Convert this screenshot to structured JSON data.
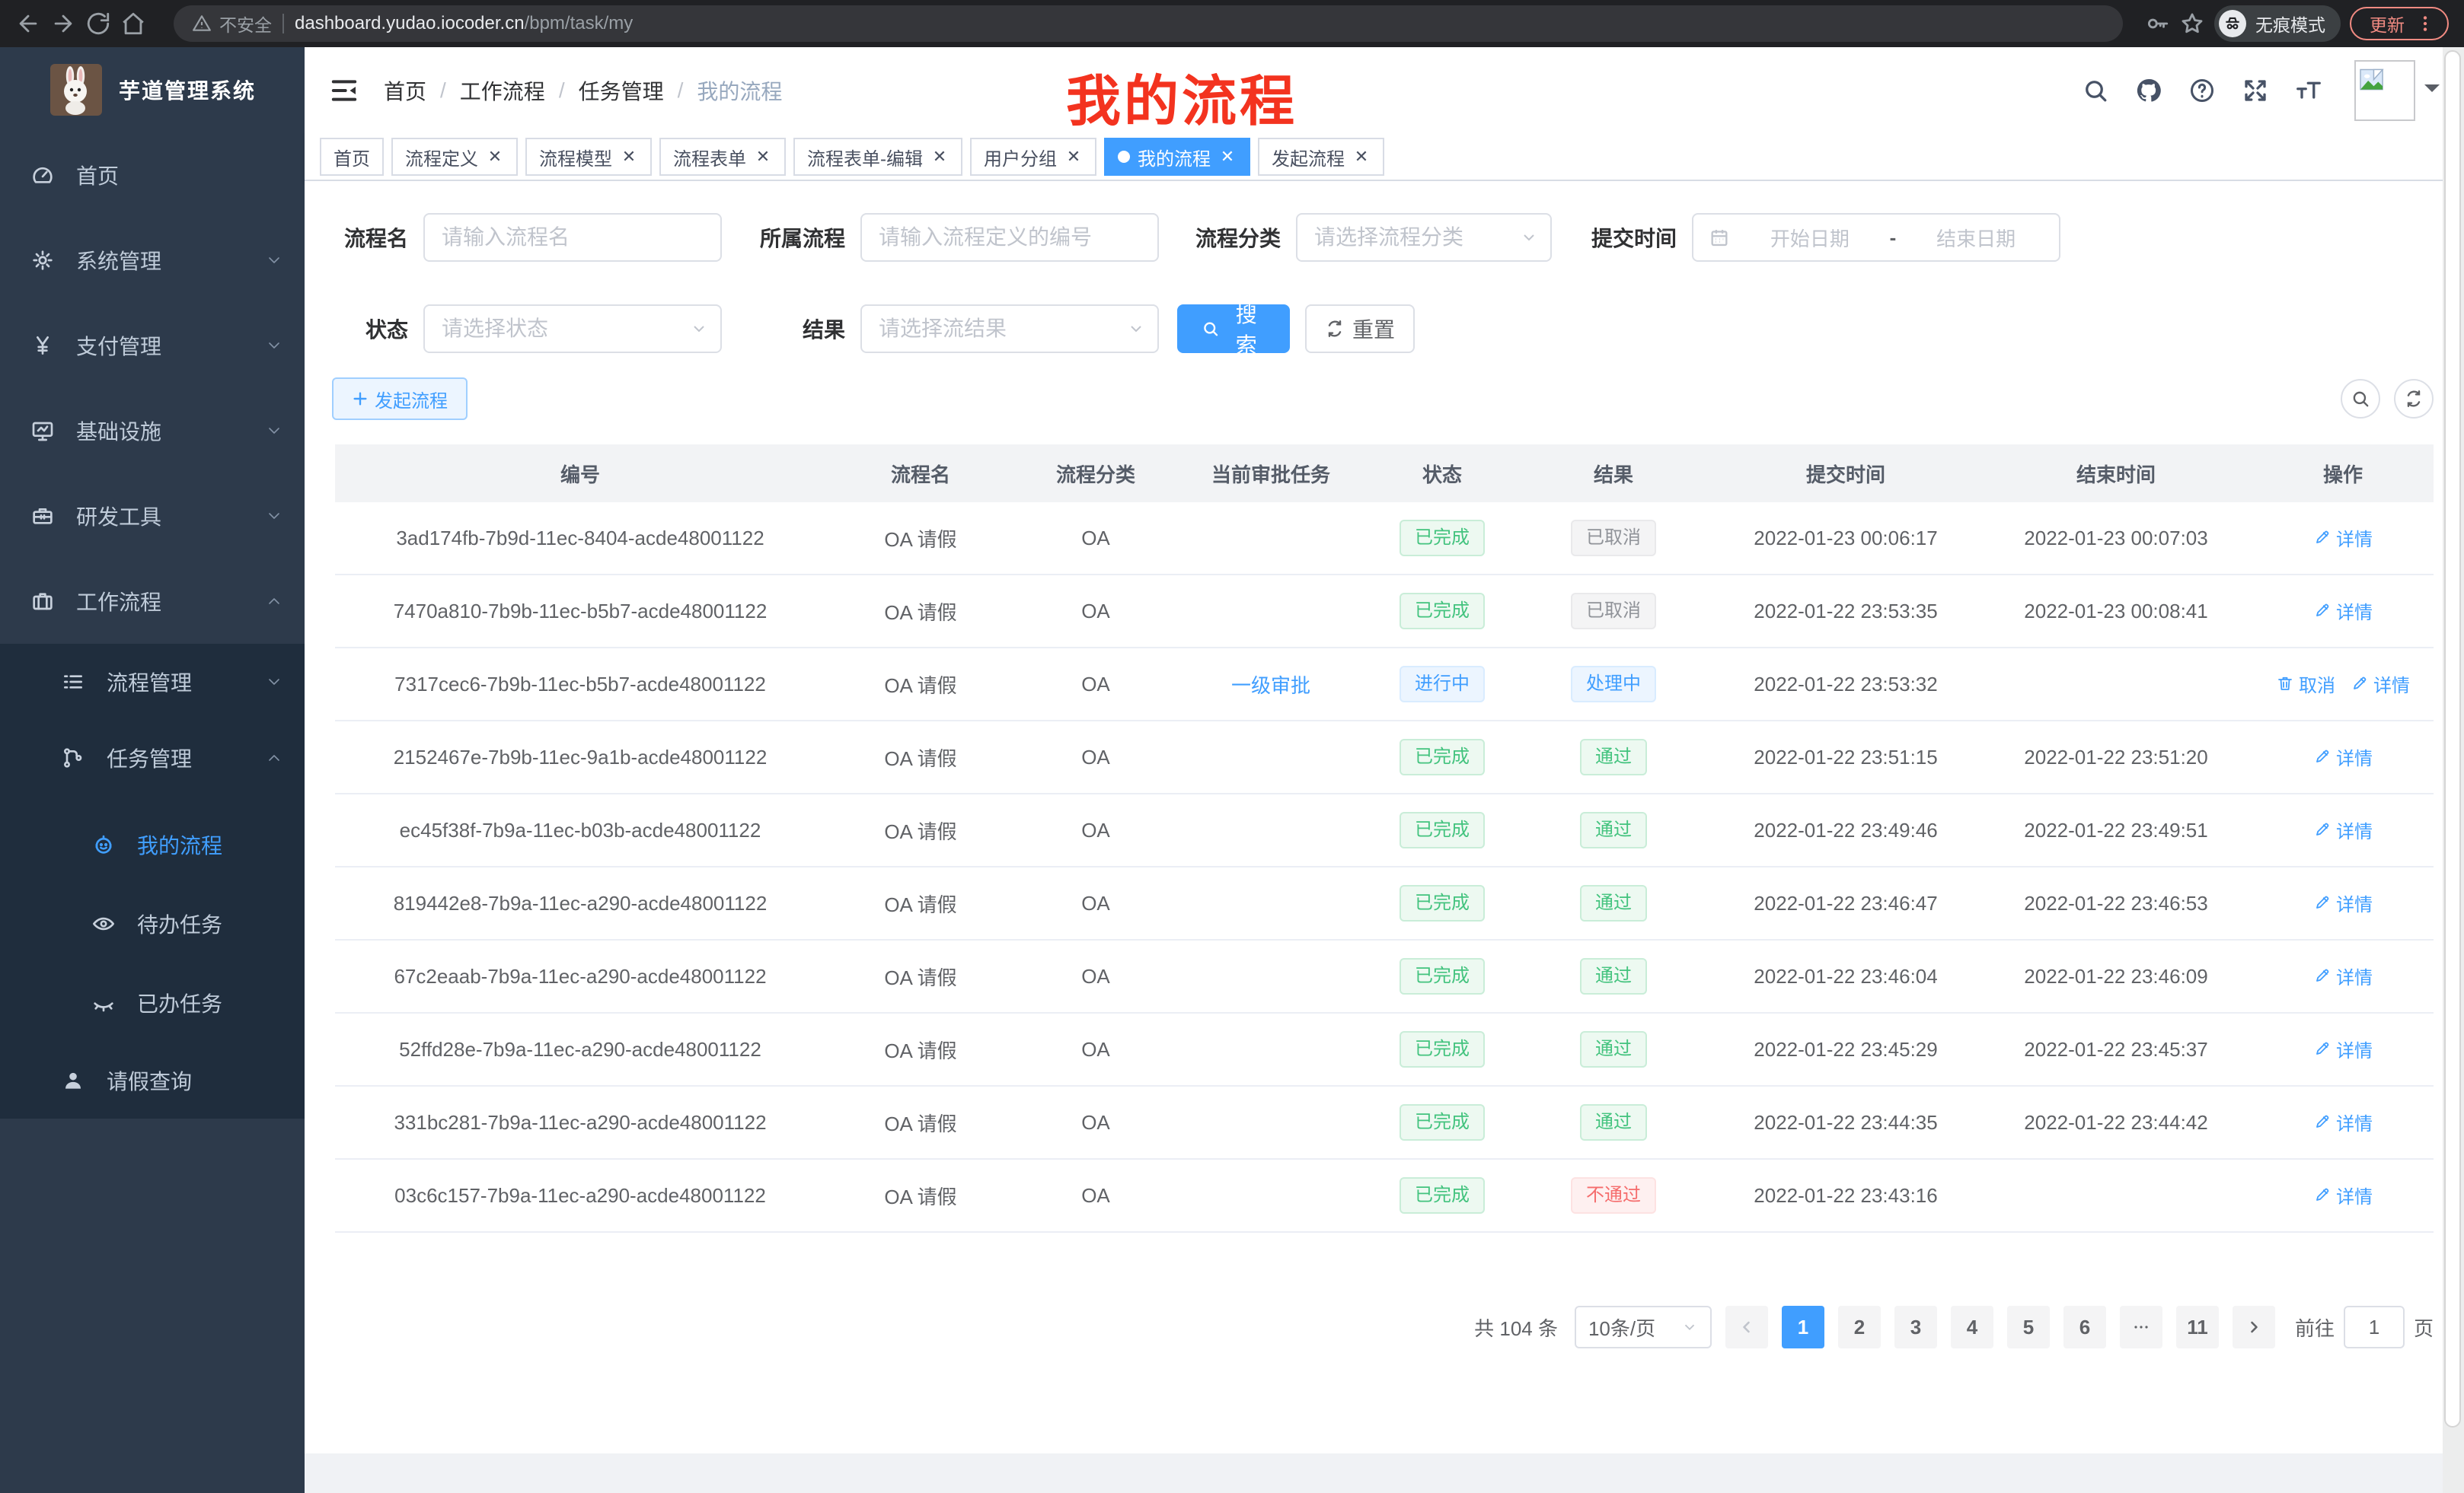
{
  "browser": {
    "security_label": "不安全",
    "url_host": "dashboard.yudao.iocoder.cn",
    "url_path": "/bpm/task/my",
    "incognito_label": "无痕模式",
    "update_label": "更新"
  },
  "sidebar": {
    "app_title": "芋道管理系统",
    "menu": [
      {
        "name": "home",
        "label": "首页",
        "icon": "dashboard-icon",
        "level": 1,
        "expand": null
      },
      {
        "name": "system",
        "label": "系统管理",
        "icon": "gear-icon",
        "level": 1,
        "expand": "down"
      },
      {
        "name": "payment",
        "label": "支付管理",
        "icon": "yen-icon",
        "level": 1,
        "expand": "down"
      },
      {
        "name": "infra",
        "label": "基础设施",
        "icon": "monitor-icon",
        "level": 1,
        "expand": "down"
      },
      {
        "name": "devtools",
        "label": "研发工具",
        "icon": "toolbox-icon",
        "level": 1,
        "expand": "down"
      },
      {
        "name": "workflow",
        "label": "工作流程",
        "icon": "briefcase-icon",
        "level": 1,
        "expand": "up"
      }
    ],
    "submenu": [
      {
        "name": "process-mgmt",
        "label": "流程管理",
        "icon": "list-icon",
        "level": 2,
        "expand": "down",
        "active": false
      },
      {
        "name": "task-mgmt",
        "label": "任务管理",
        "icon": "flow-icon",
        "level": 2,
        "expand": "up",
        "active": false
      },
      {
        "name": "my-process",
        "label": "我的流程",
        "icon": "robot-icon",
        "level": 3,
        "expand": null,
        "active": true
      },
      {
        "name": "todo-tasks",
        "label": "待办任务",
        "icon": "eye-open-icon",
        "level": 3,
        "expand": null,
        "active": false
      },
      {
        "name": "done-tasks",
        "label": "已办任务",
        "icon": "eye-closed-icon",
        "level": 3,
        "expand": null,
        "active": false
      },
      {
        "name": "leave-query",
        "label": "请假查询",
        "icon": "user-icon",
        "level": 2,
        "expand": null,
        "active": false
      }
    ]
  },
  "header": {
    "breadcrumb": [
      "首页",
      "工作流程",
      "任务管理",
      "我的流程"
    ],
    "annotation": {
      "text": "我的流程",
      "color": "#f3331f"
    }
  },
  "tabs": [
    {
      "label": "首页",
      "closable": false,
      "active": false
    },
    {
      "label": "流程定义",
      "closable": true,
      "active": false
    },
    {
      "label": "流程模型",
      "closable": true,
      "active": false
    },
    {
      "label": "流程表单",
      "closable": true,
      "active": false
    },
    {
      "label": "流程表单-编辑",
      "closable": true,
      "active": false
    },
    {
      "label": "用户分组",
      "closable": true,
      "active": false
    },
    {
      "label": "我的流程",
      "closable": true,
      "active": true
    },
    {
      "label": "发起流程",
      "closable": true,
      "active": false
    }
  ],
  "filters": {
    "name_label": "流程名",
    "name_placeholder": "请输入流程名",
    "definition_label": "所属流程",
    "definition_placeholder": "请输入流程定义的编号",
    "category_label": "流程分类",
    "category_placeholder": "请选择流程分类",
    "time_label": "提交时间",
    "time_start_placeholder": "开始日期",
    "time_separator": "-",
    "time_end_placeholder": "结束日期",
    "status_label": "状态",
    "status_placeholder": "请选择状态",
    "result_label": "结果",
    "result_placeholder": "请选择流结果",
    "search_label": "搜索",
    "reset_label": "重置"
  },
  "toolbar": {
    "create_label": "发起流程"
  },
  "table": {
    "columns": [
      "编号",
      "流程名",
      "流程分类",
      "当前审批任务",
      "状态",
      "结果",
      "提交时间",
      "结束时间",
      "操作"
    ],
    "rows": [
      {
        "id": "3ad174fb-7b9d-11ec-8404-acde48001122",
        "name": "OA 请假",
        "category": "OA",
        "task": "",
        "status": {
          "label": "已完成",
          "type": "success"
        },
        "result": {
          "label": "已取消",
          "type": "info"
        },
        "submit_time": "2022-01-23 00:06:17",
        "end_time": "2022-01-23 00:07:03",
        "actions": [
          {
            "label": "详情",
            "icon": "edit-icon",
            "name": "detail-link"
          }
        ]
      },
      {
        "id": "7470a810-7b9b-11ec-b5b7-acde48001122",
        "name": "OA 请假",
        "category": "OA",
        "task": "",
        "status": {
          "label": "已完成",
          "type": "success"
        },
        "result": {
          "label": "已取消",
          "type": "info"
        },
        "submit_time": "2022-01-22 23:53:35",
        "end_time": "2022-01-23 00:08:41",
        "actions": [
          {
            "label": "详情",
            "icon": "edit-icon",
            "name": "detail-link"
          }
        ]
      },
      {
        "id": "7317cec6-7b9b-11ec-b5b7-acde48001122",
        "name": "OA 请假",
        "category": "OA",
        "task": "一级审批",
        "status": {
          "label": "进行中",
          "type": "primary"
        },
        "result": {
          "label": "处理中",
          "type": "primary"
        },
        "submit_time": "2022-01-22 23:53:32",
        "end_time": "",
        "actions": [
          {
            "label": "取消",
            "icon": "trash-icon",
            "name": "cancel-link"
          },
          {
            "label": "详情",
            "icon": "edit-icon",
            "name": "detail-link"
          }
        ]
      },
      {
        "id": "2152467e-7b9b-11ec-9a1b-acde48001122",
        "name": "OA 请假",
        "category": "OA",
        "task": "",
        "status": {
          "label": "已完成",
          "type": "success"
        },
        "result": {
          "label": "通过",
          "type": "success"
        },
        "submit_time": "2022-01-22 23:51:15",
        "end_time": "2022-01-22 23:51:20",
        "actions": [
          {
            "label": "详情",
            "icon": "edit-icon",
            "name": "detail-link"
          }
        ]
      },
      {
        "id": "ec45f38f-7b9a-11ec-b03b-acde48001122",
        "name": "OA 请假",
        "category": "OA",
        "task": "",
        "status": {
          "label": "已完成",
          "type": "success"
        },
        "result": {
          "label": "通过",
          "type": "success"
        },
        "submit_time": "2022-01-22 23:49:46",
        "end_time": "2022-01-22 23:49:51",
        "actions": [
          {
            "label": "详情",
            "icon": "edit-icon",
            "name": "detail-link"
          }
        ]
      },
      {
        "id": "819442e8-7b9a-11ec-a290-acde48001122",
        "name": "OA 请假",
        "category": "OA",
        "task": "",
        "status": {
          "label": "已完成",
          "type": "success"
        },
        "result": {
          "label": "通过",
          "type": "success"
        },
        "submit_time": "2022-01-22 23:46:47",
        "end_time": "2022-01-22 23:46:53",
        "actions": [
          {
            "label": "详情",
            "icon": "edit-icon",
            "name": "detail-link"
          }
        ]
      },
      {
        "id": "67c2eaab-7b9a-11ec-a290-acde48001122",
        "name": "OA 请假",
        "category": "OA",
        "task": "",
        "status": {
          "label": "已完成",
          "type": "success"
        },
        "result": {
          "label": "通过",
          "type": "success"
        },
        "submit_time": "2022-01-22 23:46:04",
        "end_time": "2022-01-22 23:46:09",
        "actions": [
          {
            "label": "详情",
            "icon": "edit-icon",
            "name": "detail-link"
          }
        ]
      },
      {
        "id": "52ffd28e-7b9a-11ec-a290-acde48001122",
        "name": "OA 请假",
        "category": "OA",
        "task": "",
        "status": {
          "label": "已完成",
          "type": "success"
        },
        "result": {
          "label": "通过",
          "type": "success"
        },
        "submit_time": "2022-01-22 23:45:29",
        "end_time": "2022-01-22 23:45:37",
        "actions": [
          {
            "label": "详情",
            "icon": "edit-icon",
            "name": "detail-link"
          }
        ]
      },
      {
        "id": "331bc281-7b9a-11ec-a290-acde48001122",
        "name": "OA 请假",
        "category": "OA",
        "task": "",
        "status": {
          "label": "已完成",
          "type": "success"
        },
        "result": {
          "label": "通过",
          "type": "success"
        },
        "submit_time": "2022-01-22 23:44:35",
        "end_time": "2022-01-22 23:44:42",
        "actions": [
          {
            "label": "详情",
            "icon": "edit-icon",
            "name": "detail-link"
          }
        ]
      },
      {
        "id": "03c6c157-7b9a-11ec-a290-acde48001122",
        "name": "OA 请假",
        "category": "OA",
        "task": "",
        "status": {
          "label": "已完成",
          "type": "success"
        },
        "result": {
          "label": "不通过",
          "type": "danger"
        },
        "submit_time": "2022-01-22 23:43:16",
        "end_time": "",
        "actions": [
          {
            "label": "详情",
            "icon": "edit-icon",
            "name": "detail-link"
          }
        ]
      }
    ]
  },
  "pagination": {
    "total_label": "共 104 条",
    "page_size_label": "10条/页",
    "pages": [
      "1",
      "2",
      "3",
      "4",
      "5",
      "6",
      "ellipsis",
      "11"
    ],
    "active_page": "1",
    "goto_label": "前往",
    "goto_value": "1",
    "goto_suffix": "页"
  },
  "colors": {
    "primary": "#409eff",
    "success": "#43c37e",
    "info": "#909399",
    "danger": "#f56c6c",
    "sidebar_bg": "#2d3a4b",
    "submenu_bg": "#1f2d3d",
    "annotation_red": "#f3331f"
  }
}
